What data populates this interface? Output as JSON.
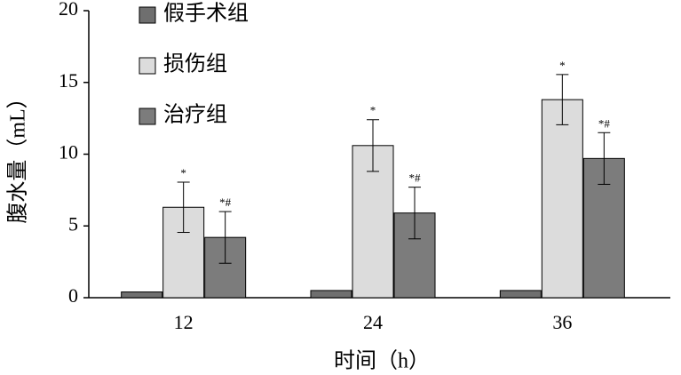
{
  "chart_data": {
    "type": "bar",
    "x_label": "时间（h）",
    "y_label": "腹水量（mL）",
    "categories": [
      "12",
      "24",
      "36"
    ],
    "series": [
      {
        "name": "假手术组",
        "color": "#6f6f6f",
        "values": [
          0.4,
          0.5,
          0.5
        ],
        "errors": [
          null,
          null,
          null
        ],
        "annotations": [
          null,
          null,
          null
        ]
      },
      {
        "name": "损伤组",
        "color": "#dcdcdc",
        "values": [
          6.3,
          10.6,
          13.8
        ],
        "errors": [
          1.75,
          1.8,
          1.75
        ],
        "annotations": [
          "*",
          "*",
          "*"
        ]
      },
      {
        "name": "治疗组",
        "color": "#7c7c7c",
        "values": [
          4.2,
          5.9,
          9.7
        ],
        "errors": [
          1.8,
          1.8,
          1.8
        ],
        "annotations": [
          "*#",
          "*#",
          "*#"
        ]
      }
    ],
    "ylim": [
      0,
      20
    ],
    "yticks": [
      0,
      5,
      10,
      15,
      20
    ],
    "grid": false,
    "legend": "top-left"
  }
}
